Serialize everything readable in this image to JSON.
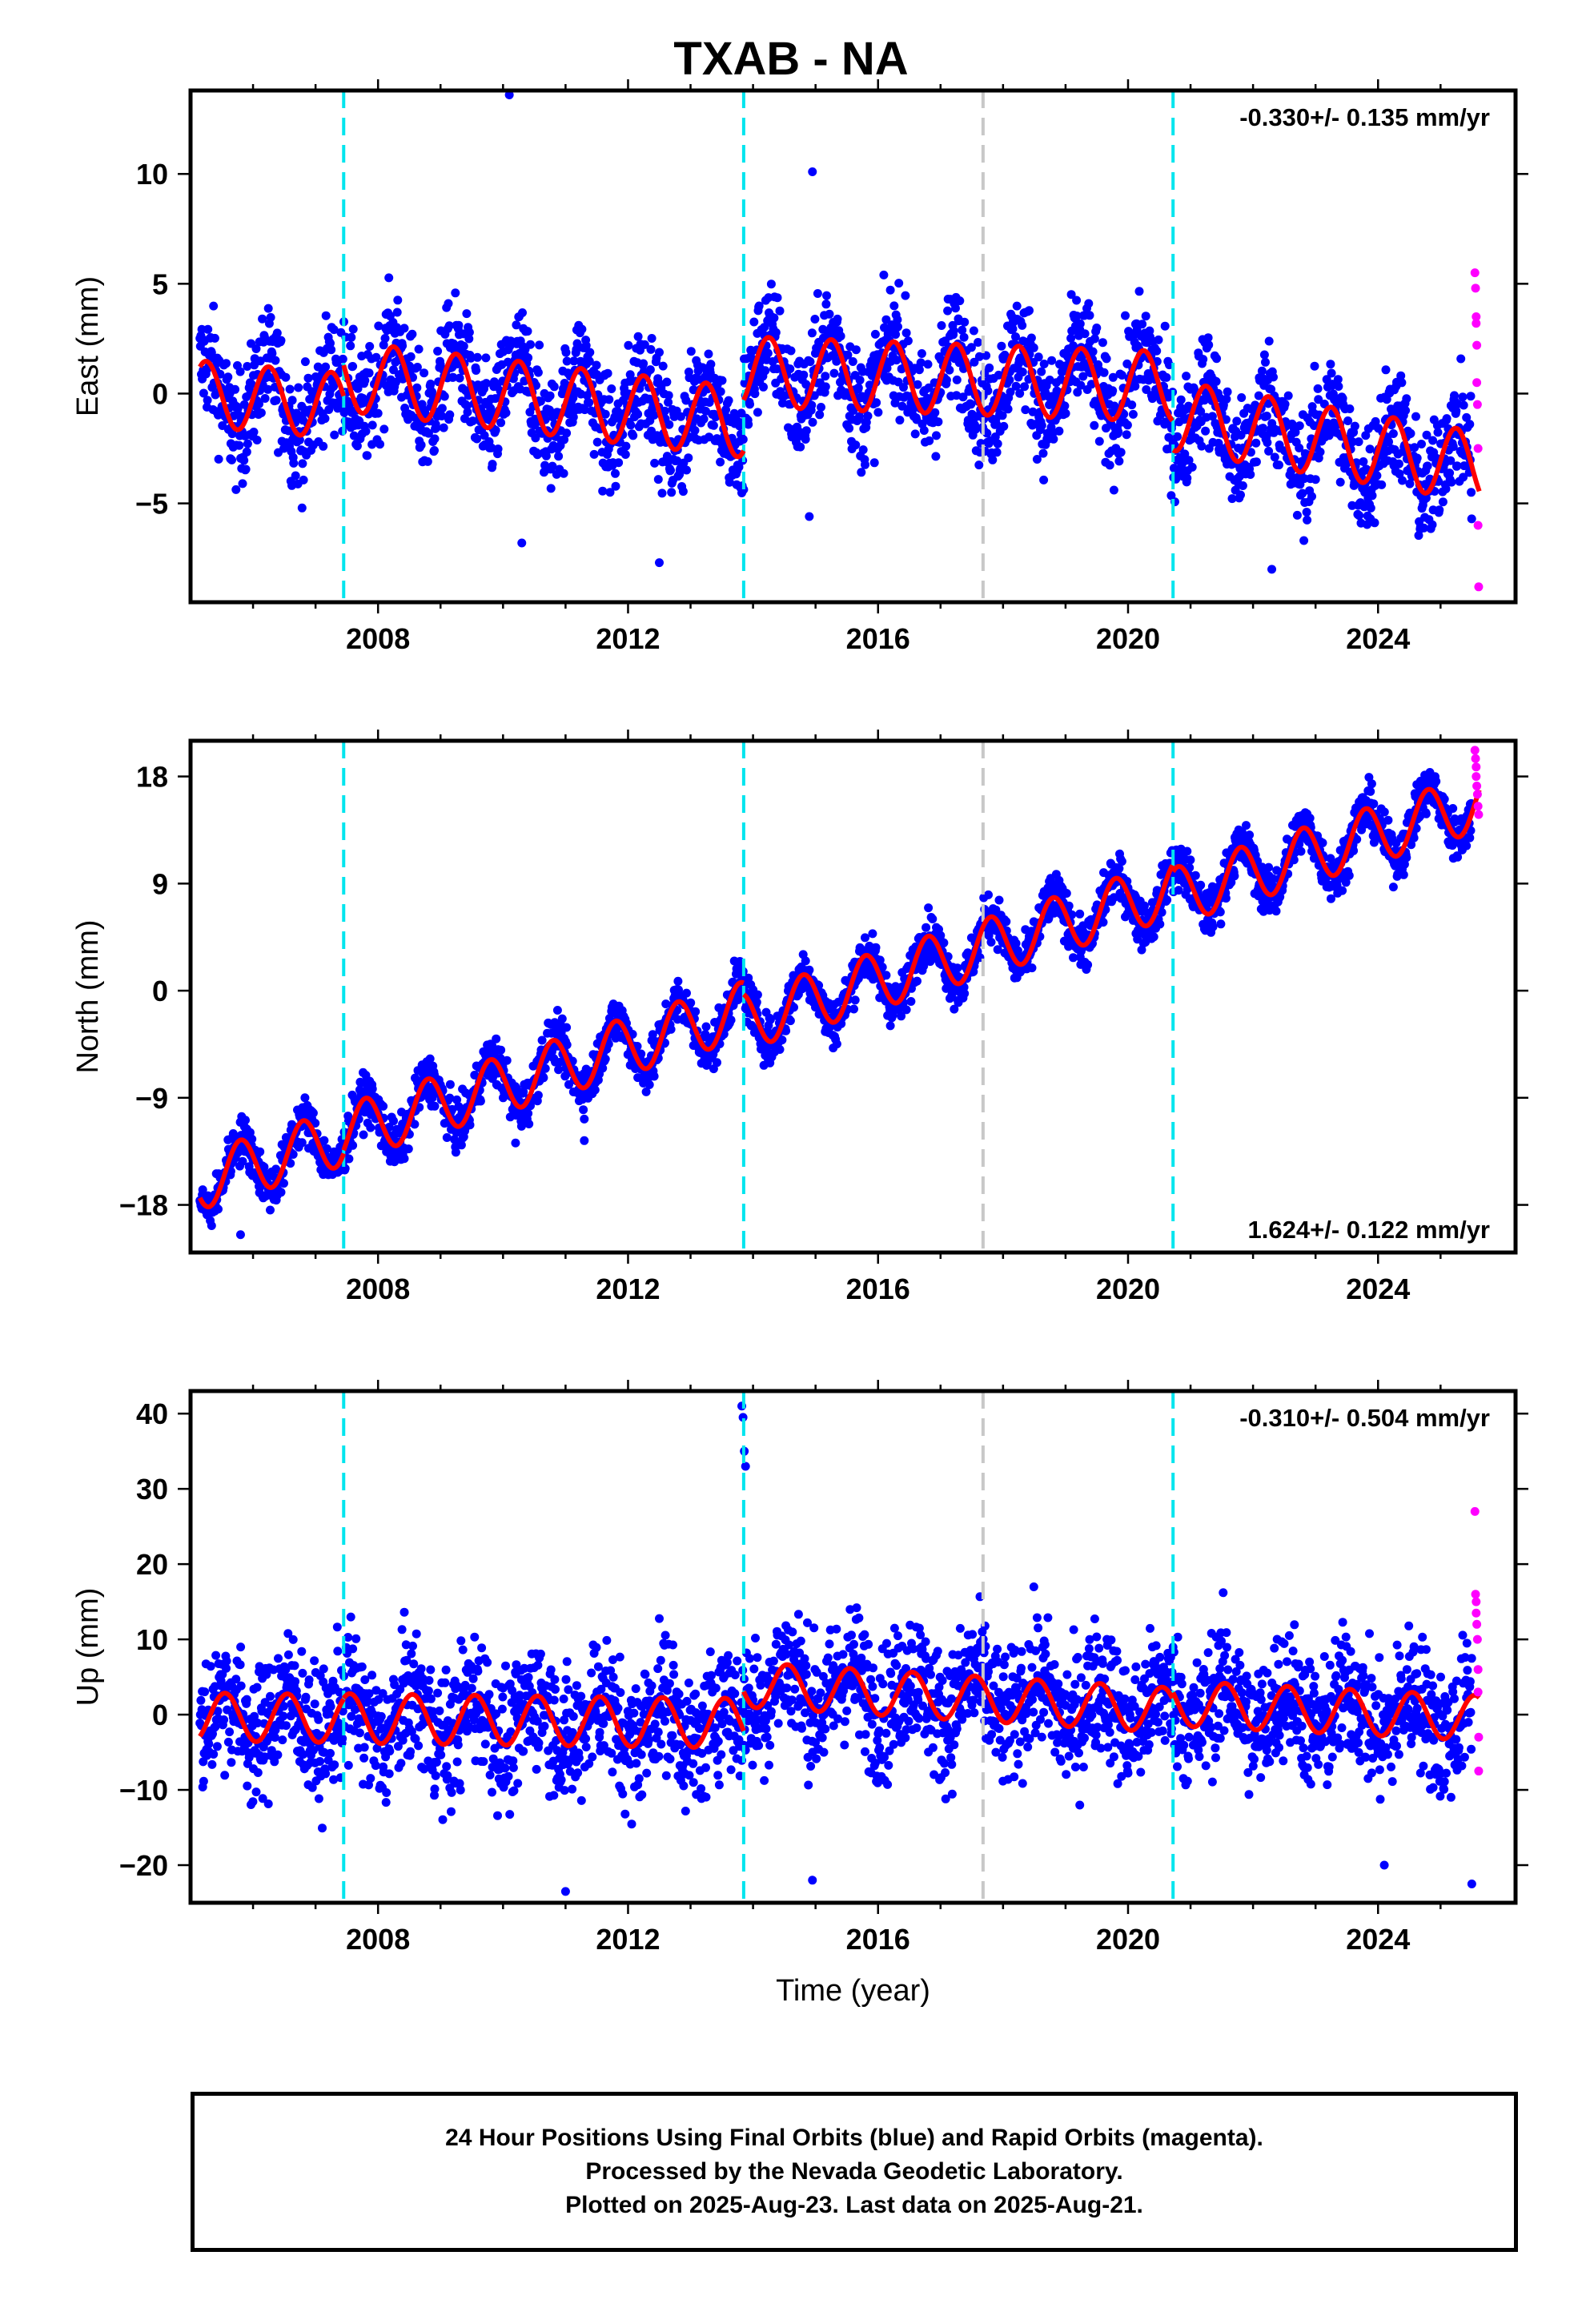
{
  "title": "TXAB - NA",
  "caption": {
    "lines": [
      "24 Hour Positions Using Final Orbits (blue) and Rapid Orbits (magenta).",
      "Processed by the Nevada Geodetic Laboratory.",
      "Plotted on 2025-Aug-23. Last data on 2025-Aug-21."
    ]
  },
  "colors": {
    "final_orbits": "#0000ff",
    "rapid_orbits": "#ff00ff",
    "model": "#ff0000",
    "equipment_change": "#00e5ee",
    "other_event": "#c8c8c8"
  },
  "chart_data": [
    {
      "type": "scatter",
      "panel": "east",
      "title": "TXAB - NA",
      "ylabel": "East (mm)",
      "xlabel": "",
      "xlim": [
        2005.0,
        2026.2
      ],
      "ylim": [
        -9.5,
        13.8
      ],
      "xticks": [
        2008,
        2012,
        2016,
        2020,
        2024
      ],
      "xtick_labels": [
        "2008",
        "2012",
        "2016",
        "2020",
        "2024"
      ],
      "yticks": [
        -5,
        0,
        5,
        10
      ],
      "ytick_labels": [
        "−5",
        "0",
        "5",
        "10"
      ],
      "velocity_label": "-0.330+/- 0.135 mm/yr",
      "velocity_position": "top-right",
      "events": [
        {
          "x": 2007.45,
          "type": "equipment"
        },
        {
          "x": 2013.85,
          "type": "equipment"
        },
        {
          "x": 2017.68,
          "type": "other"
        },
        {
          "x": 2020.72,
          "type": "equipment"
        }
      ],
      "model": {
        "segments": [
          {
            "x0": 2005.15,
            "x1": 2007.45,
            "y0": 0.0,
            "slope": -0.25,
            "amp": 1.5
          },
          {
            "x0": 2007.45,
            "x1": 2013.85,
            "y0": 0.8,
            "slope": -0.33,
            "amp": 1.6
          },
          {
            "x0": 2013.85,
            "x1": 2020.72,
            "y0": 1.0,
            "slope": -0.1,
            "amp": 1.6
          },
          {
            "x0": 2020.72,
            "x1": 2025.62,
            "y0": -1.0,
            "slope": -0.48,
            "amp": 1.6
          }
        ],
        "phase_year": 0.0
      },
      "scatter": {
        "x_start": 2005.15,
        "x_end": 2025.5,
        "noise": 1.3
      },
      "rapid": {
        "x": [
          2025.55,
          2025.56,
          2025.57,
          2025.57,
          2025.58,
          2025.58,
          2025.59,
          2025.6,
          2025.6,
          2025.61
        ],
        "y": [
          5.5,
          4.8,
          3.5,
          3.2,
          2.2,
          0.5,
          -0.5,
          -2.5,
          -6.0,
          -8.8
        ]
      },
      "outliers": {
        "x": [
          2010.1,
          2014.95,
          2012.5,
          2010.3,
          2014.9,
          2022.3
        ],
        "y": [
          13.6,
          10.1,
          -7.7,
          -6.8,
          -5.6,
          -8.0
        ]
      }
    },
    {
      "type": "scatter",
      "panel": "north",
      "ylabel": "North (mm)",
      "xlabel": "",
      "xlim": [
        2005.0,
        2026.2
      ],
      "ylim": [
        -22,
        21
      ],
      "xticks": [
        2008,
        2012,
        2016,
        2020,
        2024
      ],
      "xtick_labels": [
        "2008",
        "2012",
        "2016",
        "2020",
        "2024"
      ],
      "yticks": [
        -18,
        -9,
        0,
        9,
        18
      ],
      "ytick_labels": [
        "−18",
        "−9",
        "0",
        "9",
        "18"
      ],
      "velocity_label": "1.624+/- 0.122 mm/yr",
      "velocity_position": "bottom-right",
      "events": [
        {
          "x": 2007.45,
          "type": "equipment"
        },
        {
          "x": 2013.85,
          "type": "equipment"
        },
        {
          "x": 2017.68,
          "type": "other"
        },
        {
          "x": 2020.72,
          "type": "equipment"
        }
      ],
      "model": {
        "segments": [
          {
            "x0": 2005.15,
            "x1": 2007.45,
            "y0": -16.0,
            "slope": 1.62,
            "amp": 2.4
          },
          {
            "x0": 2007.45,
            "x1": 2013.85,
            "y0": -12.0,
            "slope": 1.62,
            "amp": 2.4
          },
          {
            "x0": 2013.85,
            "x1": 2020.72,
            "y0": -2.6,
            "slope": 1.62,
            "amp": 2.4
          },
          {
            "x0": 2020.72,
            "x1": 2025.62,
            "y0": 7.9,
            "slope": 1.62,
            "amp": 2.4
          }
        ],
        "phase_year": 0.55
      },
      "scatter": {
        "x_start": 2005.15,
        "x_end": 2025.5,
        "noise": 1.0
      },
      "rapid": {
        "x": [
          2025.55,
          2025.56,
          2025.57,
          2025.57,
          2025.58,
          2025.59,
          2025.6,
          2025.61
        ],
        "y": [
          20.2,
          19.5,
          18.8,
          18.0,
          17.2,
          16.5,
          15.5,
          14.8
        ]
      },
      "outliers": {
        "x": [
          2005.8,
          2010.2,
          2011.3
        ],
        "y": [
          -20.5,
          -12.8,
          -12.6
        ]
      }
    },
    {
      "type": "scatter",
      "panel": "up",
      "ylabel": "Up (mm)",
      "xlabel": "Time (year)",
      "xlim": [
        2005.0,
        2026.2
      ],
      "ylim": [
        -25,
        43
      ],
      "xticks": [
        2008,
        2012,
        2016,
        2020,
        2024
      ],
      "xtick_labels": [
        "2008",
        "2012",
        "2016",
        "2020",
        "2024"
      ],
      "yticks": [
        -20,
        -10,
        0,
        10,
        20,
        30,
        40
      ],
      "ytick_labels": [
        "−20",
        "−10",
        "0",
        "10",
        "20",
        "30",
        "40"
      ],
      "velocity_label": "-0.310+/- 0.504 mm/yr",
      "velocity_position": "top-right",
      "events": [
        {
          "x": 2007.45,
          "type": "equipment"
        },
        {
          "x": 2013.85,
          "type": "equipment"
        },
        {
          "x": 2017.68,
          "type": "other"
        },
        {
          "x": 2020.72,
          "type": "equipment"
        }
      ],
      "model": {
        "segments": [
          {
            "x0": 2005.15,
            "x1": 2007.45,
            "y0": -0.3,
            "slope": -0.1,
            "amp": 3.2
          },
          {
            "x0": 2007.45,
            "x1": 2013.85,
            "y0": -0.5,
            "slope": -0.1,
            "amp": 3.3
          },
          {
            "x0": 2013.85,
            "x1": 2020.72,
            "y0": 4.0,
            "slope": -0.5,
            "amp": 3.0
          },
          {
            "x0": 2020.72,
            "x1": 2025.62,
            "y0": 1.5,
            "slope": -0.4,
            "amp": 3.0
          }
        ],
        "phase_year": 0.3
      },
      "scatter": {
        "x_start": 2005.15,
        "x_end": 2025.5,
        "noise": 4.5
      },
      "rapid": {
        "x": [
          2025.55,
          2025.56,
          2025.57,
          2025.57,
          2025.58,
          2025.59,
          2025.6,
          2025.6,
          2025.61,
          2025.61
        ],
        "y": [
          27.0,
          16.0,
          15.0,
          13.5,
          12.0,
          10.0,
          6.0,
          3.0,
          -3.0,
          -7.5
        ]
      },
      "outliers": {
        "x": [
          2013.82,
          2013.84,
          2013.86,
          2013.88,
          2011.0,
          2014.95,
          2025.5,
          2024.1
        ],
        "y": [
          41.0,
          39.5,
          35.0,
          33.0,
          -23.5,
          -22.0,
          -22.5,
          -20.0
        ]
      }
    }
  ]
}
